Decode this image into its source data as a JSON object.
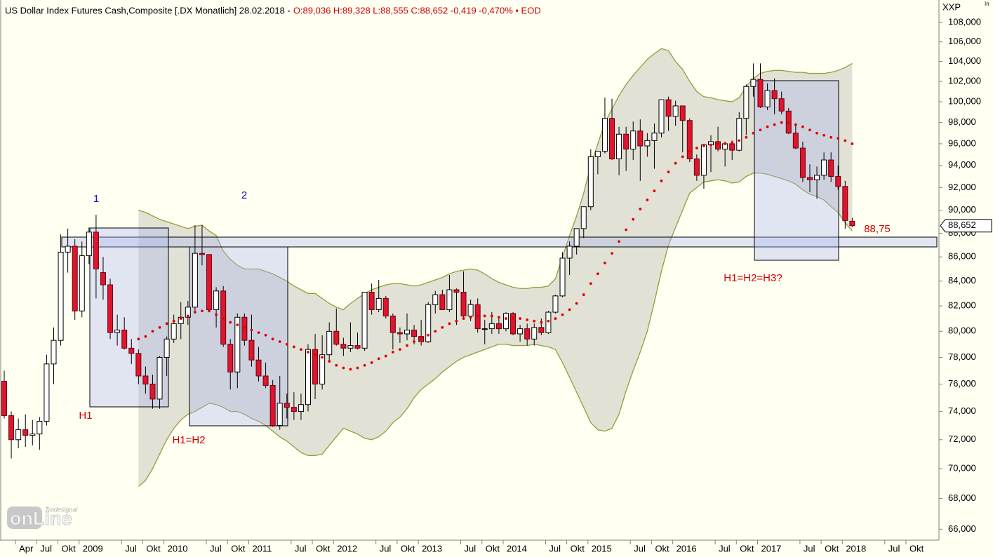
{
  "chart_data": {
    "type": "candlestick",
    "title": "US Dollar Index Futures Cash,Composite [.DX Monatlich] 28.02.2018 -",
    "subtitle": "O:89,036 H:89,328 L:88,555 C:88,652 -0,419 -0,470% • EOD",
    "axis_name": "XXP",
    "corner_label": "In",
    "price_tag": "88,652",
    "watermark": {
      "brand": "Tradesignal",
      "logo": "onLine"
    },
    "annotations": [
      "1",
      "2",
      "H1",
      "H1=H2",
      "H1=H2=H3?",
      "88,75"
    ],
    "log_scale": true,
    "up_color": "#ffffff",
    "down_color": "#e0142d",
    "band_line_color": "#9a9a3a",
    "band_fill_color": "#dcdcd0",
    "middle_color": "#e00000",
    "ylim": [
      65.3,
      110.4
    ],
    "yticks": [
      {
        "value": 66,
        "label": "66,000"
      },
      {
        "value": 68,
        "label": "68,000"
      },
      {
        "value": 70,
        "label": "70,000"
      },
      {
        "value": 72,
        "label": "72,000"
      },
      {
        "value": 74,
        "label": "74,000"
      },
      {
        "value": 76,
        "label": "76,000"
      },
      {
        "value": 78,
        "label": "78,000"
      },
      {
        "value": 80,
        "label": "80,000"
      },
      {
        "value": 82,
        "label": "82,000"
      },
      {
        "value": 84,
        "label": "84,000"
      },
      {
        "value": 86,
        "label": "86,000"
      },
      {
        "value": 88,
        "label": "88,000"
      },
      {
        "value": 90,
        "label": "90,000"
      },
      {
        "value": 92,
        "label": "92,000"
      },
      {
        "value": 94,
        "label": "94,000"
      },
      {
        "value": 96,
        "label": "96,000"
      },
      {
        "value": 98,
        "label": "98,000"
      },
      {
        "value": 100,
        "label": "100,000"
      },
      {
        "value": 102,
        "label": "102,000"
      },
      {
        "value": 104,
        "label": "104,000"
      },
      {
        "value": 106,
        "label": "106,000"
      },
      {
        "value": 108,
        "label": "108,000"
      }
    ],
    "categories": [
      null,
      null,
      "Apr",
      null,
      null,
      "Jul",
      null,
      null,
      "Okt",
      null,
      null,
      "2009",
      null,
      null,
      null,
      null,
      null,
      "Jul",
      null,
      null,
      "Okt",
      null,
      null,
      "2010",
      null,
      null,
      null,
      null,
      null,
      "Jul",
      null,
      null,
      "Okt",
      null,
      null,
      "2011",
      null,
      null,
      null,
      null,
      null,
      "Jul",
      null,
      null,
      "Okt",
      null,
      null,
      "2012",
      null,
      null,
      null,
      null,
      null,
      "Jul",
      null,
      null,
      "Okt",
      null,
      null,
      "2013",
      null,
      null,
      null,
      null,
      null,
      "Jul",
      null,
      null,
      "Okt",
      null,
      null,
      "2014",
      null,
      null,
      null,
      null,
      null,
      "Jul",
      null,
      null,
      "Okt",
      null,
      null,
      "2015",
      null,
      null,
      null,
      null,
      null,
      "Jul",
      null,
      null,
      "Okt",
      null,
      null,
      "2016",
      null,
      null,
      null,
      null,
      null,
      "Jul",
      null,
      null,
      "Okt",
      null,
      null,
      "2017",
      null,
      null,
      null,
      null,
      null,
      "Jul",
      null,
      null,
      "Okt",
      null,
      null,
      "2018",
      null,
      null,
      null,
      null,
      null,
      "Jul",
      null,
      null,
      "Okt",
      null
    ],
    "open": [
      76.2,
      73.7,
      72.0,
      72.7,
      72.3,
      72.4,
      73.3,
      77.5,
      79.3,
      86.4,
      86.9,
      81.6,
      86.1,
      88.1,
      84.7,
      83.7,
      79.9,
      80.1,
      78.7,
      78.3,
      76.6,
      76.0,
      74.9,
      78.0,
      79.4,
      80.6,
      81.1,
      81.9,
      86.3,
      86.2,
      81.7,
      83.2,
      79.0,
      76.9,
      81.1,
      79.3,
      77.8,
      76.6,
      75.9,
      73.0,
      74.6,
      74.3,
      74.0,
      74.5,
      78.6,
      76.0,
      78.2,
      80.0,
      79.0,
      78.7,
      78.9,
      78.7,
      83.1,
      81.7,
      82.6,
      81.2,
      79.9,
      79.8,
      80.1,
      79.6,
      79.2,
      82.1,
      82.9,
      81.7,
      83.3,
      83.1,
      81.2,
      82.1,
      80.2,
      80.2,
      80.6,
      80.2,
      81.4,
      79.8,
      80.2,
      79.4,
      80.3,
      79.9,
      81.5,
      82.8,
      85.9,
      86.9,
      88.4,
      90.3,
      94.8,
      95.3,
      98.4,
      94.6,
      96.9,
      95.5,
      97.2,
      95.8,
      96.3,
      97.0,
      100.2,
      98.6,
      99.6,
      98.2,
      94.6,
      93.1,
      95.9,
      96.2,
      95.5,
      96.0,
      95.4,
      98.4,
      101.5,
      102.2,
      99.5,
      101.1,
      100.3,
      99.1,
      97.0,
      95.6,
      92.9,
      92.7,
      93.1,
      94.5,
      93.0,
      92.1,
      89.036,
      null,
      null,
      null,
      null,
      null,
      null,
      null,
      null,
      null
    ],
    "high": [
      77.0,
      74.0,
      73.5,
      73.8,
      73.4,
      73.6,
      78.2,
      80.3,
      87.9,
      88.4,
      87.5,
      87.3,
      88.5,
      89.6,
      86.0,
      84.2,
      81.3,
      81.1,
      79.4,
      78.6,
      77.3,
      76.7,
      78.1,
      79.6,
      81.3,
      82.3,
      82.4,
      88.7,
      88.7,
      86.2,
      83.5,
      83.6,
      79.4,
      81.4,
      81.4,
      81.3,
      78.8,
      77.6,
      76.3,
      76.6,
      75.3,
      75.4,
      75.3,
      79.0,
      79.8,
      79.7,
      80.7,
      81.8,
      79.5,
      80.7,
      79.9,
      83.1,
      83.8,
      84.1,
      82.8,
      81.4,
      80.3,
      81.4,
      80.5,
      80.9,
      82.3,
      83.2,
      83.3,
      84.5,
      83.4,
      84.8,
      82.5,
      82.6,
      80.9,
      81.5,
      81.1,
      81.5,
      81.5,
      80.5,
      80.6,
      80.6,
      81.0,
      81.6,
      82.9,
      86.4,
      87.3,
      88.4,
      90.3,
      95.5,
      95.3,
      100.4,
      100.3,
      97.6,
      97.6,
      98.1,
      98.3,
      97.0,
      97.9,
      100.2,
      100.5,
      100.1,
      99.6,
      98.4,
      95.0,
      96.0,
      96.8,
      97.6,
      96.2,
      96.3,
      99.0,
      101.7,
      103.8,
      103.8,
      101.8,
      102.3,
      101.0,
      99.4,
      97.9,
      96.2,
      94.1,
      93.9,
      95.2,
      95.2,
      94.0,
      92.6,
      89.328,
      null,
      null,
      null,
      null,
      null,
      null,
      null,
      null,
      null
    ],
    "low": [
      73.5,
      70.7,
      71.4,
      71.5,
      71.6,
      71.3,
      73.0,
      76.0,
      78.9,
      84.7,
      80.9,
      81.1,
      85.4,
      82.6,
      82.5,
      79.4,
      78.9,
      78.6,
      77.5,
      76.0,
      75.3,
      74.2,
      74.2,
      76.6,
      79.1,
      79.4,
      80.5,
      81.6,
      85.3,
      81.5,
      80.3,
      78.8,
      75.6,
      75.7,
      78.9,
      77.3,
      76.2,
      75.7,
      72.9,
      72.7,
      73.5,
      73.4,
      73.4,
      74.0,
      74.9,
      75.6,
      77.6,
      78.9,
      78.1,
      78.4,
      78.6,
      78.5,
      81.3,
      81.5,
      81.0,
      78.6,
      79.1,
      79.3,
      79.0,
      78.9,
      79.1,
      81.4,
      81.8,
      81.5,
      80.5,
      81.1,
      80.8,
      79.9,
      79.0,
      79.8,
      79.8,
      80.0,
      79.7,
      79.2,
      78.9,
      78.9,
      79.7,
      79.8,
      81.4,
      82.7,
      84.5,
      86.2,
      87.6,
      90.0,
      93.2,
      95.1,
      94.5,
      93.1,
      93.5,
      94.5,
      92.6,
      94.8,
      93.7,
      96.6,
      97.2,
      97.7,
      95.2,
      94.3,
      92.6,
      91.9,
      93.4,
      95.3,
      93.9,
      94.5,
      95.3,
      96.8,
      100.5,
      99.4,
      99.2,
      98.8,
      98.8,
      96.9,
      95.5,
      92.5,
      91.6,
      91.0,
      92.7,
      92.5,
      91.8,
      88.4,
      88.555,
      null,
      null,
      null,
      null,
      null,
      null,
      null,
      null,
      null
    ],
    "close": [
      73.7,
      72.0,
      72.7,
      72.3,
      72.4,
      73.3,
      77.5,
      79.3,
      86.4,
      86.9,
      81.6,
      86.1,
      88.1,
      85.0,
      83.7,
      79.9,
      80.1,
      78.7,
      78.3,
      76.6,
      76.0,
      74.9,
      78.0,
      79.4,
      80.6,
      81.1,
      81.9,
      86.3,
      86.2,
      81.7,
      83.2,
      79.0,
      76.9,
      81.1,
      79.3,
      77.8,
      76.6,
      75.9,
      73.0,
      74.6,
      74.3,
      74.0,
      74.5,
      78.6,
      76.0,
      78.2,
      80.0,
      79.0,
      78.7,
      78.9,
      78.7,
      83.1,
      81.7,
      82.6,
      81.2,
      79.9,
      79.8,
      80.1,
      79.6,
      79.2,
      82.1,
      82.9,
      81.7,
      83.3,
      83.1,
      81.2,
      82.1,
      80.2,
      80.2,
      80.6,
      80.2,
      81.4,
      79.8,
      80.2,
      79.4,
      80.3,
      79.9,
      81.5,
      82.8,
      85.9,
      86.9,
      88.4,
      90.3,
      94.8,
      95.3,
      98.4,
      94.6,
      96.9,
      95.5,
      97.2,
      95.8,
      96.3,
      97.0,
      100.2,
      98.6,
      99.6,
      98.2,
      94.6,
      93.1,
      95.9,
      96.2,
      95.5,
      96.0,
      95.4,
      98.4,
      101.5,
      102.2,
      99.5,
      101.1,
      100.3,
      99.1,
      97.0,
      95.6,
      92.9,
      92.7,
      93.1,
      94.5,
      93.0,
      92.1,
      89.1,
      88.652,
      null,
      null,
      null,
      null,
      null,
      null,
      null,
      null,
      null
    ],
    "bb_upper": [
      null,
      null,
      null,
      null,
      null,
      null,
      null,
      null,
      null,
      null,
      null,
      null,
      null,
      null,
      null,
      null,
      null,
      null,
      null,
      90.0,
      89.8,
      89.5,
      89.2,
      89.0,
      88.8,
      88.6,
      88.4,
      88.6,
      88.7,
      88.2,
      87.8,
      86.5,
      85.8,
      85.3,
      85.0,
      85.0,
      85.0,
      84.8,
      84.6,
      84.3,
      84.0,
      83.6,
      83.3,
      83.0,
      83.0,
      82.6,
      82.2,
      81.9,
      81.7,
      82.2,
      82.6,
      83.0,
      83.3,
      83.5,
      83.7,
      83.8,
      83.8,
      83.7,
      83.6,
      83.7,
      83.9,
      84.1,
      84.3,
      84.6,
      84.8,
      84.9,
      85.0,
      84.9,
      84.6,
      84.2,
      83.9,
      83.7,
      83.5,
      83.4,
      83.4,
      83.5,
      83.5,
      83.6,
      84.2,
      86.0,
      87.8,
      89.5,
      91.5,
      94.0,
      96.0,
      98.0,
      99.3,
      100.6,
      101.7,
      102.6,
      103.4,
      104.2,
      104.8,
      105.3,
      105.1,
      104.0,
      103.2,
      102.0,
      101.0,
      100.5,
      100.4,
      100.2,
      100.1,
      100.0,
      100.4,
      101.5,
      102.3,
      102.8,
      103.0,
      103.1,
      103.1,
      103.0,
      102.9,
      102.9,
      102.8,
      102.8,
      102.8,
      102.9,
      103.1,
      103.4,
      103.8,
      null,
      null,
      null,
      null,
      null,
      null,
      null,
      null,
      null
    ],
    "bb_middle": [
      null,
      null,
      null,
      null,
      null,
      null,
      null,
      null,
      null,
      null,
      null,
      null,
      null,
      null,
      null,
      null,
      null,
      null,
      null,
      79.4,
      79.6,
      80.0,
      80.3,
      80.6,
      80.8,
      81.0,
      81.2,
      81.5,
      81.6,
      81.6,
      81.3,
      81.0,
      80.7,
      80.5,
      80.3,
      80.1,
      79.9,
      79.7,
      79.4,
      79.2,
      79.0,
      78.8,
      78.6,
      78.4,
      78.2,
      78.0,
      77.7,
      77.4,
      77.2,
      77.1,
      77.2,
      77.4,
      77.6,
      77.9,
      78.1,
      78.4,
      78.6,
      78.9,
      79.2,
      79.5,
      79.7,
      80.0,
      80.3,
      80.6,
      80.8,
      81.0,
      81.1,
      81.2,
      81.2,
      81.2,
      81.1,
      81.0,
      81.0,
      81.0,
      80.9,
      80.8,
      80.7,
      80.8,
      81.0,
      81.3,
      81.7,
      82.2,
      82.9,
      83.8,
      84.6,
      85.5,
      86.3,
      87.3,
      88.3,
      89.2,
      90.1,
      90.9,
      91.7,
      92.6,
      93.4,
      94.2,
      94.8,
      95.3,
      95.6,
      95.8,
      95.9,
      96.0,
      96.0,
      96.1,
      96.3,
      96.6,
      97.0,
      97.3,
      97.6,
      97.8,
      98.0,
      98.0,
      97.8,
      97.6,
      97.3,
      97.0,
      96.8,
      96.6,
      96.5,
      96.3,
      96.0,
      null,
      null,
      null,
      null,
      null,
      null,
      null,
      null,
      null
    ],
    "bb_lower": [
      null,
      null,
      null,
      null,
      null,
      null,
      null,
      null,
      null,
      null,
      null,
      null,
      null,
      null,
      null,
      null,
      null,
      null,
      null,
      68.8,
      69.2,
      70.0,
      71.0,
      72.0,
      72.8,
      73.4,
      73.8,
      74.0,
      74.3,
      74.6,
      74.5,
      74.3,
      74.0,
      74.0,
      73.8,
      73.5,
      73.3,
      73.0,
      72.6,
      72.2,
      71.9,
      71.5,
      71.1,
      70.9,
      70.9,
      71.0,
      71.6,
      72.2,
      72.8,
      72.6,
      72.4,
      72.1,
      72.0,
      72.2,
      72.6,
      73.2,
      73.6,
      74.2,
      75.0,
      75.6,
      76.0,
      76.4,
      76.9,
      77.3,
      77.7,
      78.0,
      78.2,
      78.4,
      78.6,
      78.8,
      79.0,
      79.0,
      78.9,
      78.9,
      78.9,
      79.0,
      78.9,
      78.8,
      78.6,
      77.6,
      76.5,
      75.4,
      74.3,
      73.2,
      72.7,
      72.6,
      72.8,
      73.8,
      75.5,
      77.0,
      78.4,
      80.0,
      82.3,
      84.8,
      87.0,
      88.5,
      90.0,
      91.5,
      92.0,
      92.5,
      92.6,
      92.7,
      92.6,
      92.4,
      92.5,
      93.0,
      93.3,
      93.3,
      93.2,
      93.0,
      92.8,
      92.6,
      92.3,
      91.8,
      91.4,
      91.2,
      90.9,
      90.3,
      89.8,
      88.9,
      88.2,
      null,
      null,
      null,
      null,
      null,
      null,
      null,
      null,
      null
    ]
  }
}
